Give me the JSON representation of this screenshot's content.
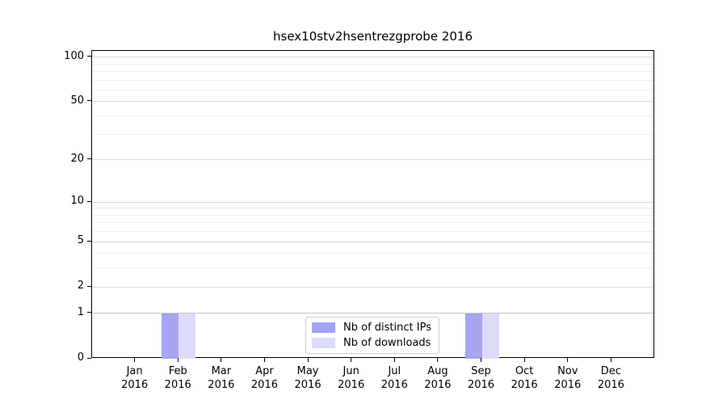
{
  "chart_data": {
    "type": "bar",
    "title": "hsex10stv2hsentrezgprobe 2016",
    "categories": [
      "Jan 2016",
      "Feb 2016",
      "Mar 2016",
      "Apr 2016",
      "May 2016",
      "Jun 2016",
      "Jul 2016",
      "Aug 2016",
      "Sep 2016",
      "Oct 2016",
      "Nov 2016",
      "Dec 2016"
    ],
    "x_tick_labels": [
      {
        "month": "Jan",
        "year": "2016"
      },
      {
        "month": "Feb",
        "year": "2016"
      },
      {
        "month": "Mar",
        "year": "2016"
      },
      {
        "month": "Apr",
        "year": "2016"
      },
      {
        "month": "May",
        "year": "2016"
      },
      {
        "month": "Jun",
        "year": "2016"
      },
      {
        "month": "Jul",
        "year": "2016"
      },
      {
        "month": "Aug",
        "year": "2016"
      },
      {
        "month": "Sep",
        "year": "2016"
      },
      {
        "month": "Oct",
        "year": "2016"
      },
      {
        "month": "Nov",
        "year": "2016"
      },
      {
        "month": "Dec",
        "year": "2016"
      }
    ],
    "series": [
      {
        "name": "Nb of distinct IPs",
        "color": "#a5a5f2",
        "values": [
          0,
          1,
          0,
          0,
          0,
          0,
          0,
          0,
          1,
          0,
          0,
          0
        ]
      },
      {
        "name": "Nb of downloads",
        "color": "#dcdcfa",
        "values": [
          0,
          1,
          0,
          0,
          0,
          0,
          0,
          0,
          1,
          0,
          0,
          0
        ]
      }
    ],
    "y_axis": {
      "scale": "log10(value+1)",
      "ticks": [
        0,
        1,
        2,
        5,
        10,
        20,
        50,
        100
      ],
      "minor_gridlines": [
        3,
        4,
        6,
        7,
        8,
        9,
        30,
        40,
        60,
        70,
        80,
        90
      ],
      "range": [
        0,
        110
      ]
    },
    "legend_position": "lower center",
    "grid": "horizontal"
  }
}
